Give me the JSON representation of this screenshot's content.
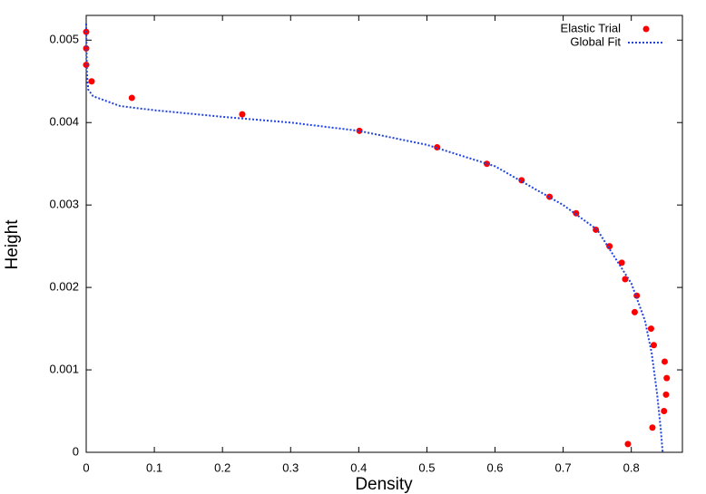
{
  "chart_data": {
    "type": "scatter",
    "xlabel": "Density",
    "ylabel": "Height",
    "xlim": [
      0,
      0.875
    ],
    "ylim": [
      0,
      0.0053
    ],
    "xticks": [
      0,
      0.1,
      0.2,
      0.3,
      0.4,
      0.5,
      0.6,
      0.7,
      0.8
    ],
    "yticks": [
      0,
      0.001,
      0.002,
      0.003,
      0.004,
      0.005
    ],
    "legend": "top-right",
    "series": [
      {
        "name": "Elastic Trial",
        "type": "scatter",
        "color": "#ff0000",
        "x": [
          0,
          0,
          0,
          0.008,
          0.067,
          0.229,
          0.401,
          0.515,
          0.588,
          0.639,
          0.68,
          0.719,
          0.748,
          0.768,
          0.786,
          0.791,
          0.808,
          0.805,
          0.829,
          0.833,
          0.849,
          0.852,
          0.851,
          0.848,
          0.831,
          0.795
        ],
        "values": [
          0.0051,
          0.0049,
          0.0047,
          0.0045,
          0.0043,
          0.0041,
          0.0039,
          0.0037,
          0.0035,
          0.0033,
          0.0031,
          0.0029,
          0.0027,
          0.0025,
          0.0023,
          0.0021,
          0.0019,
          0.0017,
          0.0015,
          0.0013,
          0.0011,
          0.0009,
          0.0007,
          0.0005,
          0.0003,
          0.0001
        ]
      },
      {
        "name": "Global Fit",
        "type": "line",
        "color": "#2244dd",
        "x": [
          0,
          0.001,
          0.003,
          0.01,
          0.05,
          0.1,
          0.2,
          0.3,
          0.4,
          0.5,
          0.6,
          0.7,
          0.75,
          0.8,
          0.82,
          0.83,
          0.838,
          0.843,
          0.846
        ],
        "values": [
          0.0052,
          0.0046,
          0.0044,
          0.00432,
          0.0042,
          0.00415,
          0.00407,
          0.004,
          0.0039,
          0.00373,
          0.00347,
          0.003,
          0.0027,
          0.00205,
          0.0016,
          0.0012,
          0.0007,
          0.0003,
          0
        ]
      }
    ]
  }
}
